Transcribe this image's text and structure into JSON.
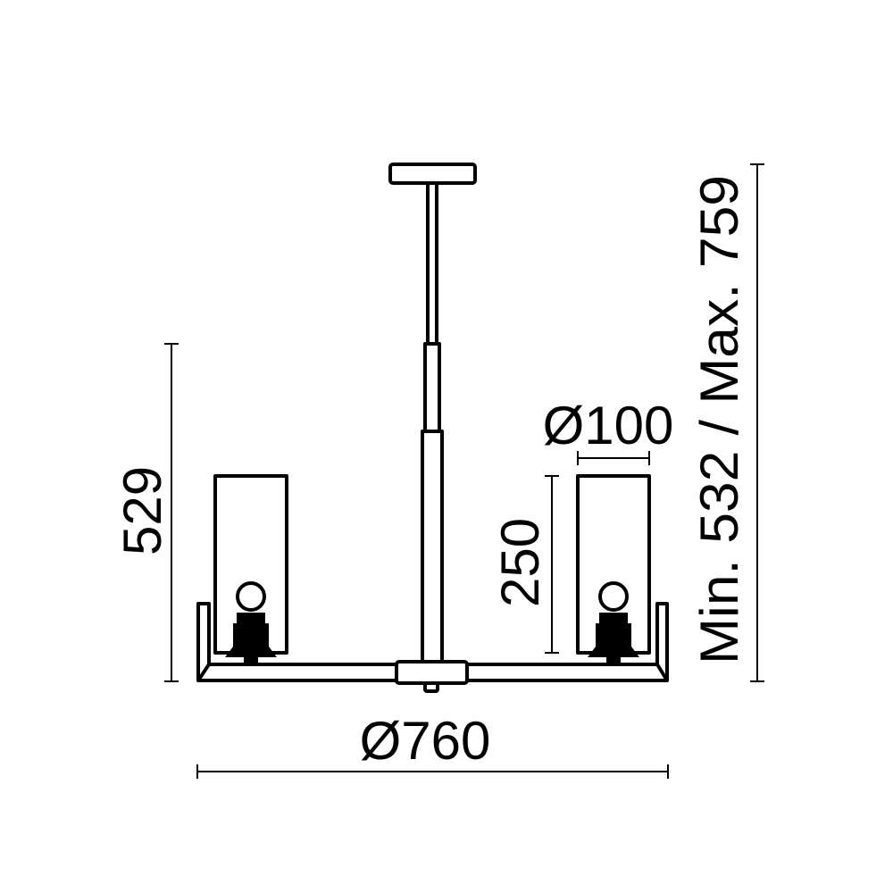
{
  "dimensions": {
    "overall_height": "529",
    "shade_height": "250",
    "shade_diameter": "Ø100",
    "overall_diameter": "Ø760",
    "adjustable_height": "Min. 532 / Max. 759"
  },
  "colors": {
    "line": "#000000",
    "background": "#ffffff"
  }
}
